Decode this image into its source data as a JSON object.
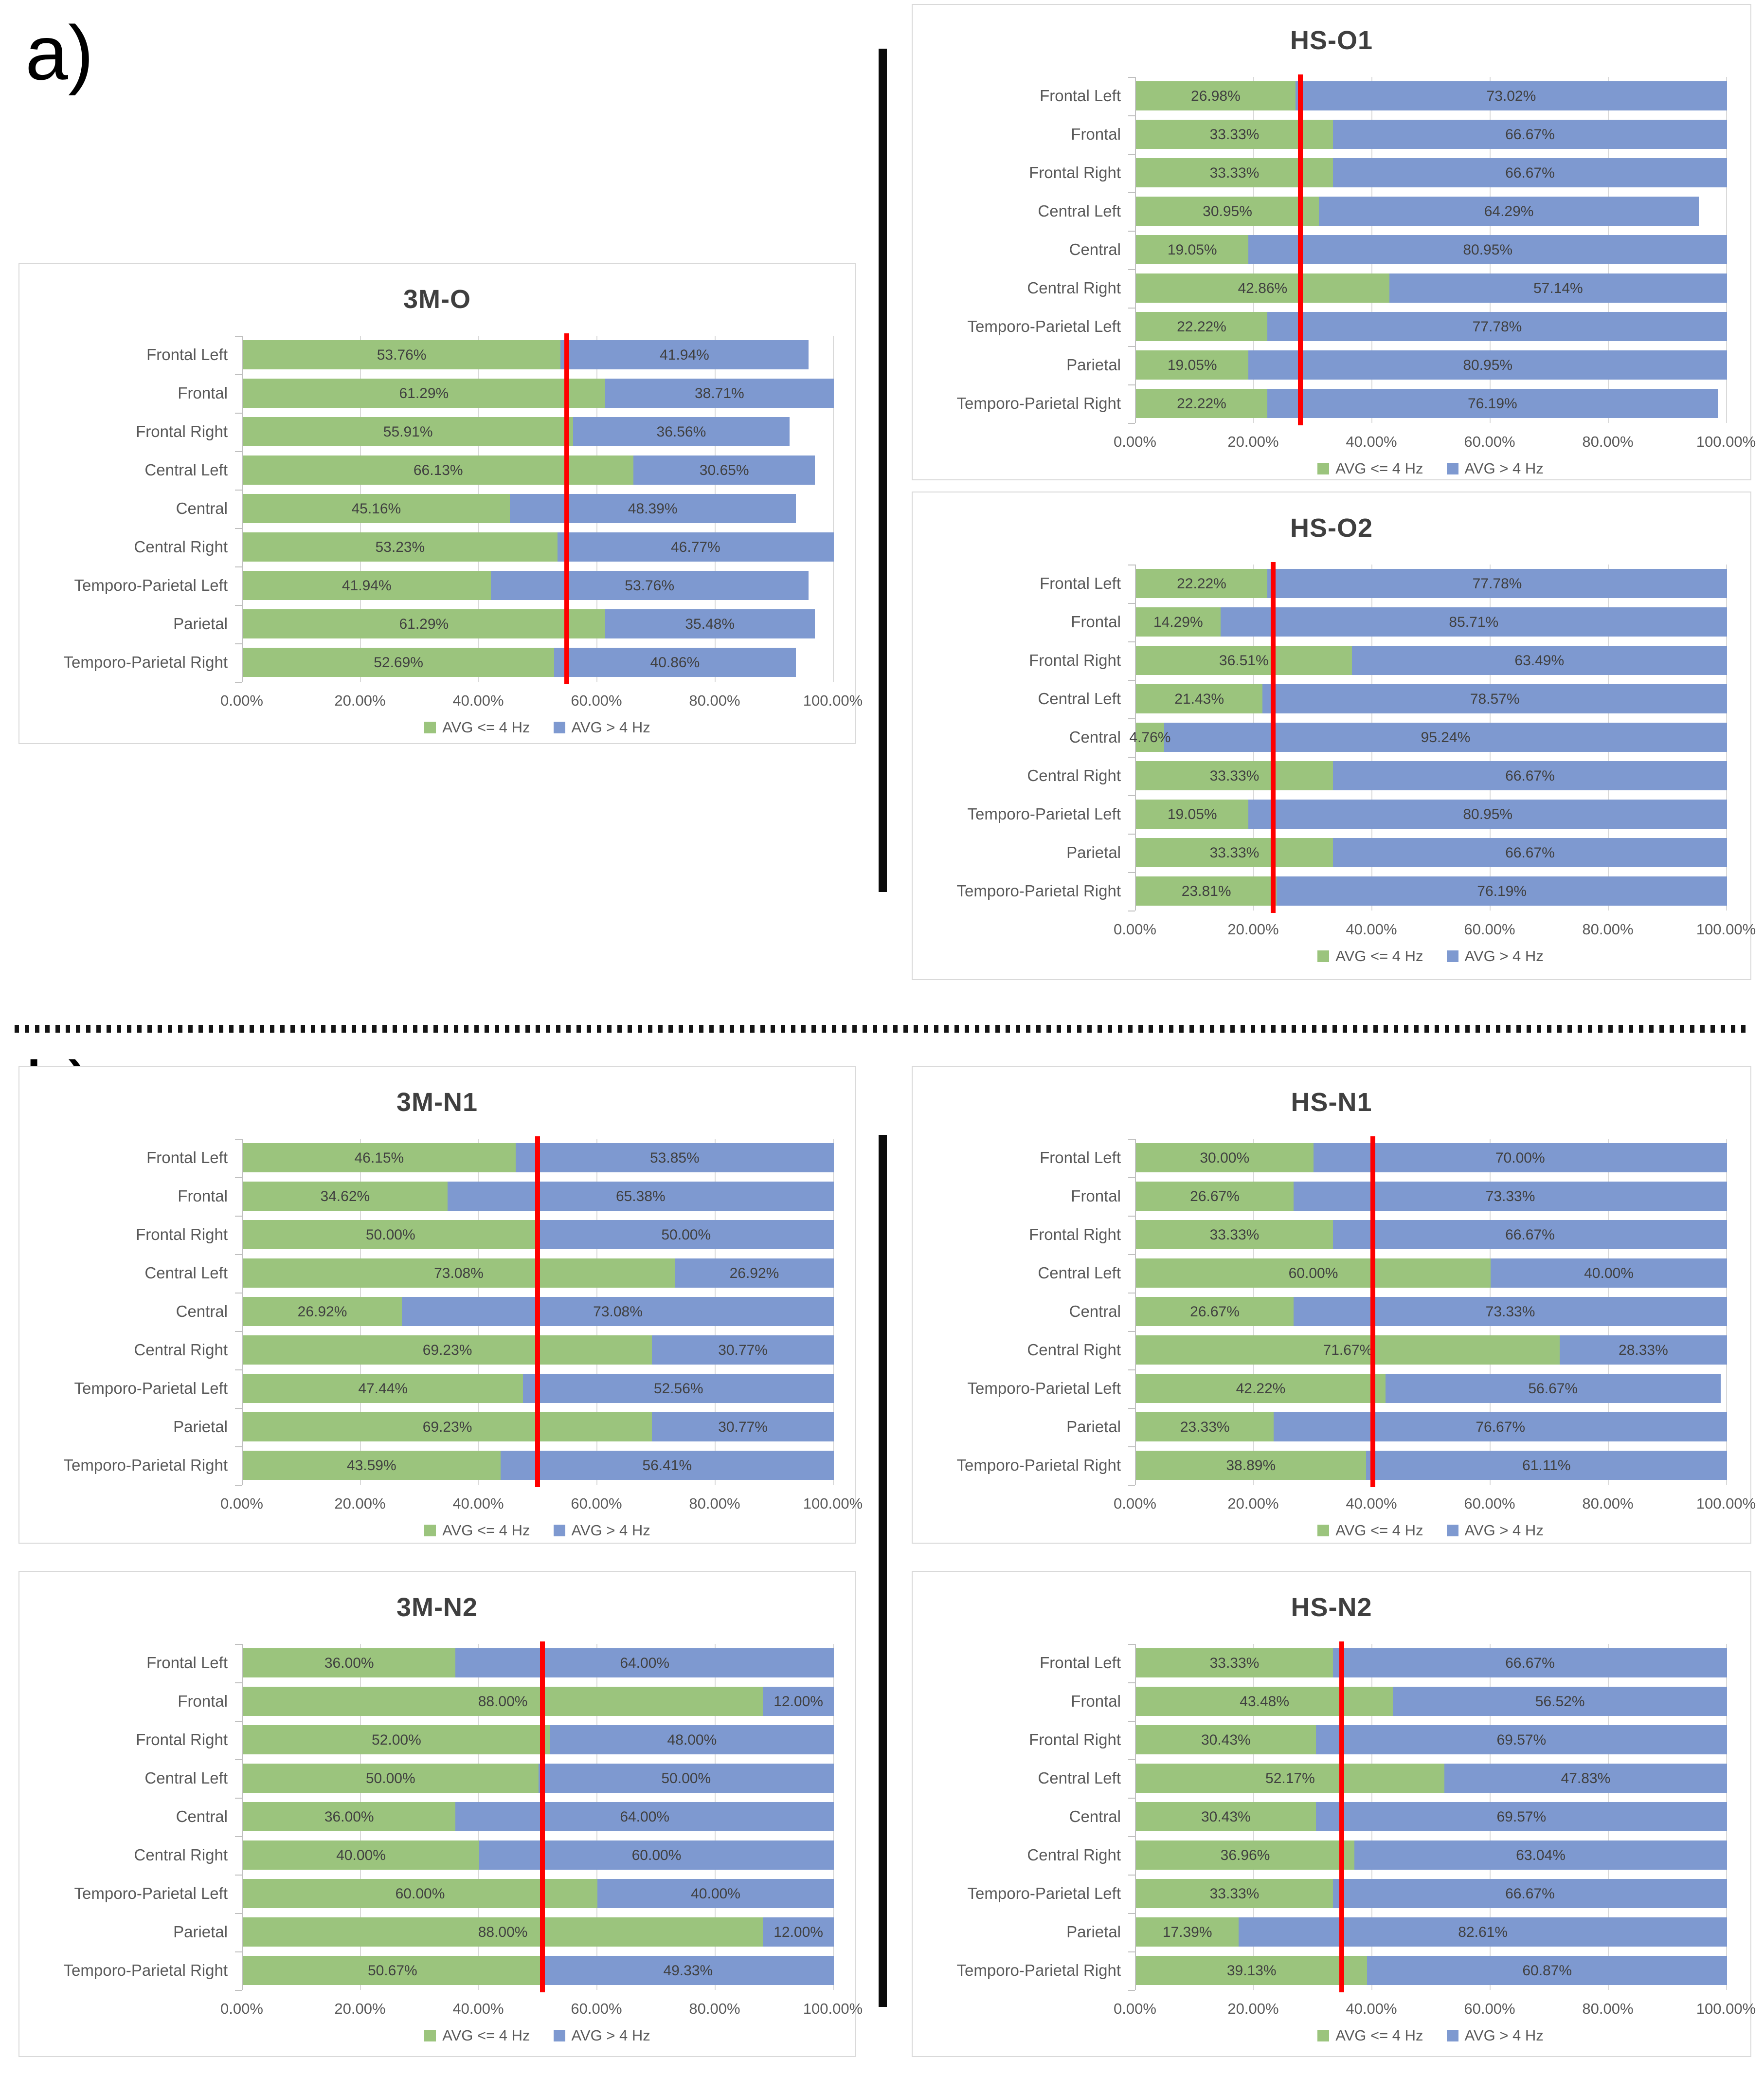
{
  "labels": {
    "section_a": "a)",
    "section_b": "b)"
  },
  "colors": {
    "green": "#9bc47d",
    "blue": "#7e99d0",
    "red_line": "#ff0000",
    "grid": "#d9d9d9",
    "axis": "#bfbfbf",
    "title_text": "#3f3f3f",
    "data_label_text": "#404040",
    "category_text": "#595959",
    "panel_border": "#d9d9d9",
    "separator": "#0b0b0b"
  },
  "chart_data": {
    "type": "bar",
    "orientation": "horizontal_stacked",
    "grid": true,
    "legend_position": "bottom",
    "xlim": [
      0,
      100
    ],
    "x_ticks": [
      "0.00%",
      "20.00%",
      "40.00%",
      "60.00%",
      "80.00%",
      "100.00%"
    ],
    "categories": [
      "Frontal Left",
      "Frontal",
      "Frontal Right",
      "Central Left",
      "Central",
      "Central Right",
      "Temporo-Parietal Left",
      "Parietal",
      "Temporo-Parietal Right"
    ],
    "legend": {
      "green": "AVG <= 4 Hz",
      "blue": "AVG > 4 Hz"
    },
    "charts": [
      {
        "title": "3M-O",
        "red_line_pct": 54.8,
        "series": [
          {
            "name": "AVG <= 4 Hz",
            "values": [
              53.76,
              61.29,
              55.91,
              66.13,
              45.16,
              53.23,
              41.94,
              61.29,
              52.69
            ]
          },
          {
            "name": "AVG > 4 Hz",
            "values": [
              41.94,
              38.71,
              36.56,
              30.65,
              48.39,
              46.77,
              53.76,
              35.48,
              40.86
            ]
          }
        ]
      },
      {
        "title": "HS-O1",
        "red_line_pct": 27.8,
        "series": [
          {
            "name": "AVG <= 4 Hz",
            "values": [
              26.98,
              33.33,
              33.33,
              30.95,
              19.05,
              42.86,
              22.22,
              19.05,
              22.22
            ]
          },
          {
            "name": "AVG > 4 Hz",
            "values": [
              73.02,
              66.67,
              66.67,
              64.29,
              80.95,
              57.14,
              77.78,
              80.95,
              76.19
            ]
          }
        ]
      },
      {
        "title": "HS-O2",
        "red_line_pct": 23.2,
        "series": [
          {
            "name": "AVG <= 4 Hz",
            "values": [
              22.22,
              14.29,
              36.51,
              21.43,
              4.76,
              33.33,
              19.05,
              33.33,
              23.81
            ]
          },
          {
            "name": "AVG > 4 Hz",
            "values": [
              77.78,
              85.71,
              63.49,
              78.57,
              95.24,
              66.67,
              80.95,
              66.67,
              76.19
            ]
          }
        ]
      },
      {
        "title": "3M-N1",
        "red_line_pct": 49.9,
        "series": [
          {
            "name": "AVG <= 4 Hz",
            "values": [
              46.15,
              34.62,
              50.0,
              73.08,
              26.92,
              69.23,
              47.44,
              69.23,
              43.59
            ]
          },
          {
            "name": "AVG > 4 Hz",
            "values": [
              53.85,
              65.38,
              50.0,
              26.92,
              73.08,
              30.77,
              52.56,
              30.77,
              56.41
            ]
          }
        ]
      },
      {
        "title": "HS-N1",
        "red_line_pct": 40.1,
        "series": [
          {
            "name": "AVG <= 4 Hz",
            "values": [
              30.0,
              26.67,
              33.33,
              60.0,
              26.67,
              71.67,
              42.22,
              23.33,
              38.89
            ]
          },
          {
            "name": "AVG > 4 Hz",
            "values": [
              70.0,
              73.33,
              66.67,
              40.0,
              73.33,
              28.33,
              56.67,
              76.67,
              61.11
            ]
          }
        ]
      },
      {
        "title": "3M-N2",
        "red_line_pct": 50.7,
        "series": [
          {
            "name": "AVG <= 4 Hz",
            "values": [
              36.0,
              88.0,
              52.0,
              50.0,
              36.0,
              40.0,
              60.0,
              88.0,
              50.67
            ]
          },
          {
            "name": "AVG > 4 Hz",
            "values": [
              64.0,
              12.0,
              48.0,
              50.0,
              64.0,
              60.0,
              40.0,
              12.0,
              49.33
            ]
          }
        ]
      },
      {
        "title": "HS-N2",
        "red_line_pct": 34.8,
        "series": [
          {
            "name": "AVG <= 4 Hz",
            "values": [
              33.33,
              43.48,
              30.43,
              52.17,
              30.43,
              36.96,
              33.33,
              17.39,
              39.13
            ]
          },
          {
            "name": "AVG > 4 Hz",
            "values": [
              66.67,
              56.52,
              69.57,
              47.83,
              69.57,
              63.04,
              66.67,
              82.61,
              60.87
            ]
          }
        ]
      }
    ]
  }
}
